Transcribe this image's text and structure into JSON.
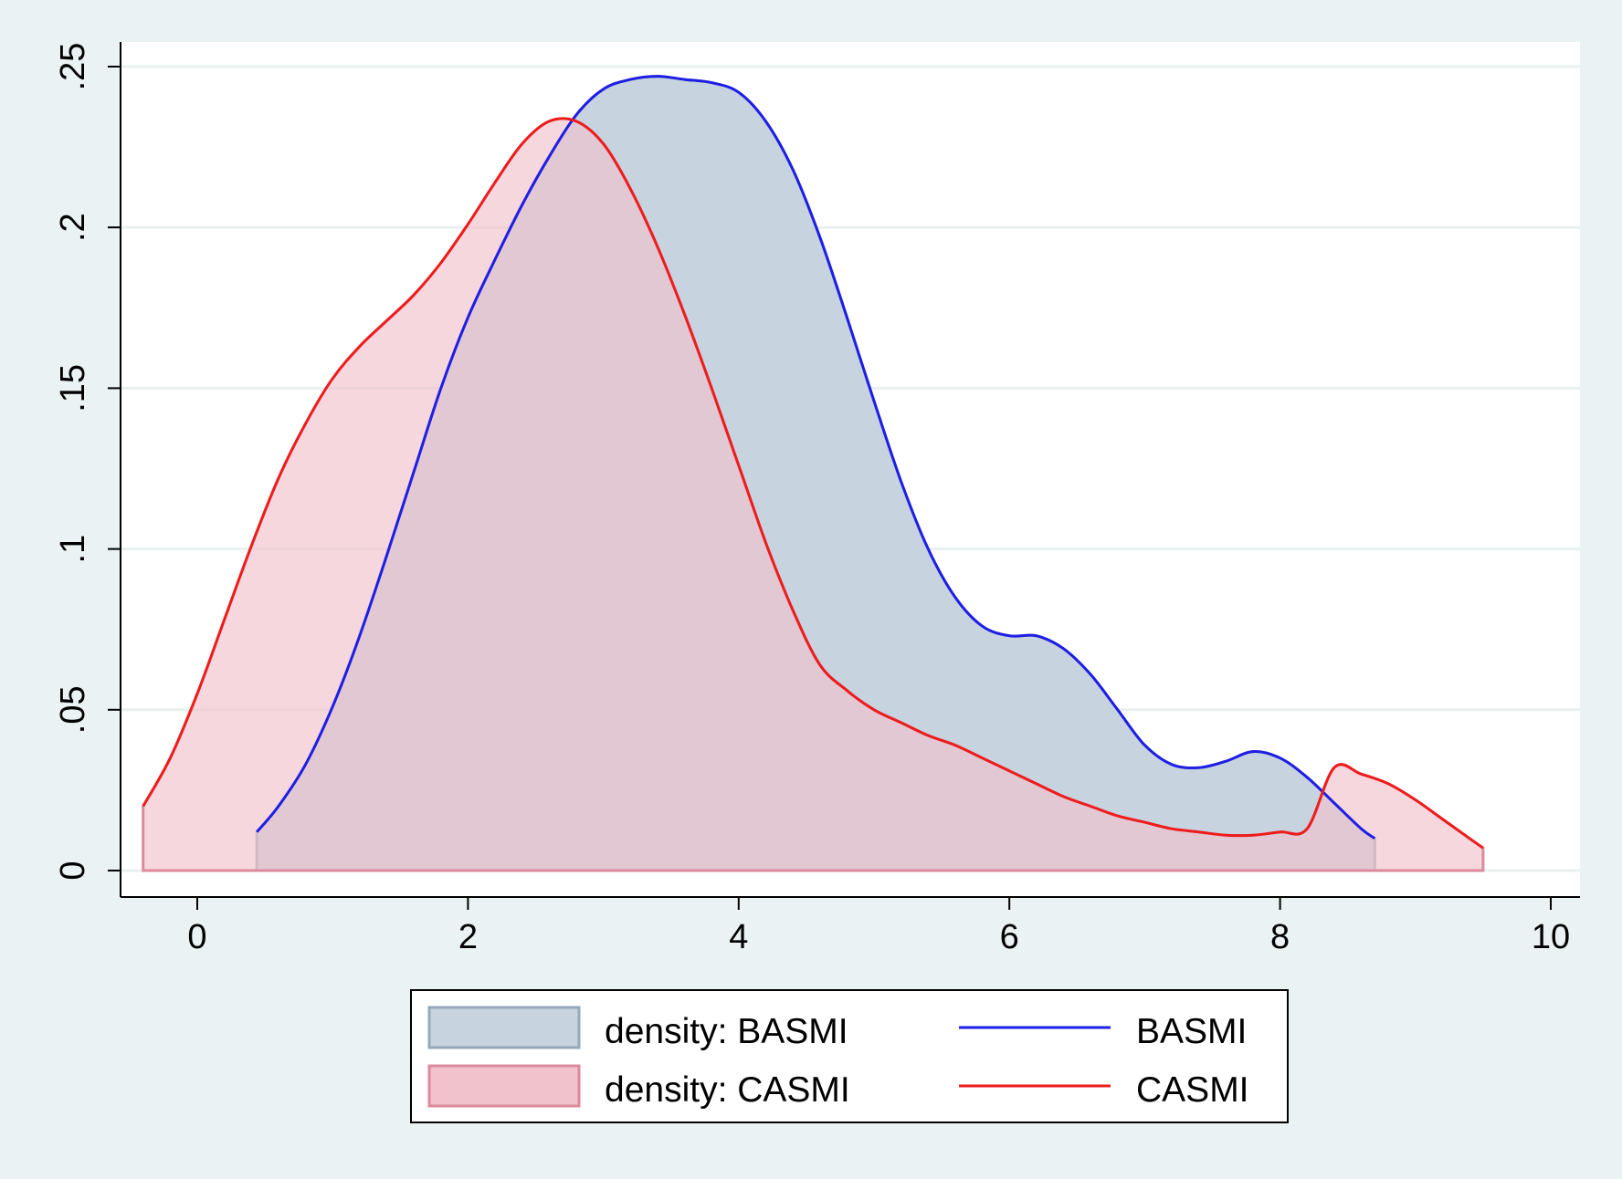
{
  "chart_data": {
    "type": "area",
    "xlim": [
      -0.4,
      10
    ],
    "ylim": [
      0,
      0.25
    ],
    "x_ticks": [
      "0",
      "2",
      "4",
      "6",
      "8",
      "10"
    ],
    "x_tick_values": [
      0,
      2,
      4,
      6,
      8,
      10
    ],
    "y_ticks": [
      "0",
      ".05",
      ".1",
      ".15",
      ".2",
      ".25"
    ],
    "y_tick_values": [
      0,
      0.05,
      0.1,
      0.15,
      0.2,
      0.25
    ],
    "grid": true,
    "legend_position": "bottom",
    "series": [
      {
        "name": "density: BASMI",
        "kind": "area",
        "fill": "#c7d3de",
        "edge": "#94a9ba",
        "x": [
          0.44,
          0.6,
          0.8,
          1.0,
          1.2,
          1.4,
          1.6,
          1.8,
          2.0,
          2.2,
          2.4,
          2.6,
          2.8,
          3.0,
          3.2,
          3.4,
          3.6,
          3.8,
          4.0,
          4.2,
          4.4,
          4.6,
          4.8,
          5.0,
          5.2,
          5.4,
          5.6,
          5.8,
          6.0,
          6.2,
          6.4,
          6.6,
          6.8,
          7.0,
          7.2,
          7.4,
          7.6,
          7.8,
          8.0,
          8.2,
          8.4,
          8.6,
          8.7
        ],
        "y": [
          0.012,
          0.02,
          0.033,
          0.051,
          0.073,
          0.098,
          0.124,
          0.15,
          0.172,
          0.19,
          0.207,
          0.222,
          0.235,
          0.243,
          0.246,
          0.247,
          0.246,
          0.245,
          0.242,
          0.233,
          0.218,
          0.197,
          0.172,
          0.146,
          0.121,
          0.1,
          0.085,
          0.076,
          0.073,
          0.073,
          0.069,
          0.061,
          0.05,
          0.039,
          0.033,
          0.032,
          0.034,
          0.037,
          0.035,
          0.029,
          0.021,
          0.013,
          0.01
        ]
      },
      {
        "name": "density: CASMI",
        "kind": "area",
        "fill": "#f1c1cc",
        "edge": "#dc8a9b",
        "x": [
          -0.4,
          -0.2,
          0.0,
          0.2,
          0.4,
          0.6,
          0.8,
          1.0,
          1.2,
          1.4,
          1.6,
          1.8,
          2.0,
          2.2,
          2.4,
          2.6,
          2.8,
          3.0,
          3.2,
          3.4,
          3.6,
          3.8,
          4.0,
          4.2,
          4.4,
          4.6,
          4.8,
          5.0,
          5.2,
          5.4,
          5.6,
          5.8,
          6.0,
          6.2,
          6.4,
          6.6,
          6.8,
          7.0,
          7.2,
          7.4,
          7.6,
          7.8,
          8.0,
          8.2,
          8.4,
          8.6,
          8.8,
          9.0,
          9.2,
          9.4,
          9.5
        ],
        "y": [
          0.02,
          0.035,
          0.055,
          0.078,
          0.101,
          0.122,
          0.139,
          0.153,
          0.163,
          0.171,
          0.179,
          0.189,
          0.201,
          0.214,
          0.226,
          0.233,
          0.233,
          0.226,
          0.212,
          0.194,
          0.173,
          0.15,
          0.126,
          0.102,
          0.081,
          0.064,
          0.056,
          0.05,
          0.046,
          0.042,
          0.039,
          0.035,
          0.031,
          0.027,
          0.023,
          0.02,
          0.017,
          0.015,
          0.013,
          0.012,
          0.011,
          0.011,
          0.012,
          0.013,
          0.032,
          0.03,
          0.027,
          0.022,
          0.016,
          0.01,
          0.007
        ]
      },
      {
        "name": "BASMI",
        "kind": "line",
        "color": "#1e1ee6"
      },
      {
        "name": "CASMI",
        "kind": "line",
        "color": "#ee1c1c"
      }
    ]
  }
}
